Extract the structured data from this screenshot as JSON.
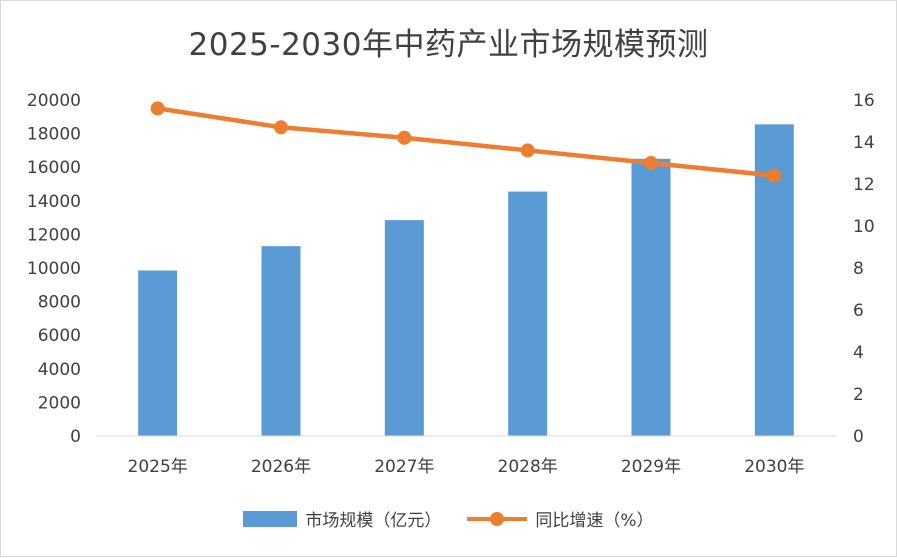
{
  "chart_data": {
    "type": "bar+line",
    "title": "2025-2030年中药产业市场规模预测",
    "categories": [
      "2025年",
      "2026年",
      "2027年",
      "2028年",
      "2029年",
      "2030年"
    ],
    "series": [
      {
        "name": "市场规模（亿元）",
        "type": "bar",
        "axis": "left",
        "color": "#5b9bd5",
        "values": [
          9850,
          11300,
          12850,
          14550,
          16500,
          18550
        ]
      },
      {
        "name": "同比增速（%）",
        "type": "line",
        "axis": "right",
        "color": "#ed7d31",
        "values": [
          15.6,
          14.7,
          14.2,
          13.6,
          13.0,
          12.4
        ]
      }
    ],
    "y_left": {
      "min": 0,
      "max": 20000,
      "step": 2000,
      "tick_labels": [
        "0",
        "2000",
        "4000",
        "6000",
        "8000",
        "10000",
        "12000",
        "14000",
        "16000",
        "18000",
        "20000"
      ]
    },
    "y_right": {
      "min": 0,
      "max": 16,
      "step": 2,
      "tick_labels": [
        "0",
        "2",
        "4",
        "6",
        "8",
        "10",
        "12",
        "14",
        "16"
      ]
    },
    "legend_position": "bottom",
    "grid": false
  }
}
